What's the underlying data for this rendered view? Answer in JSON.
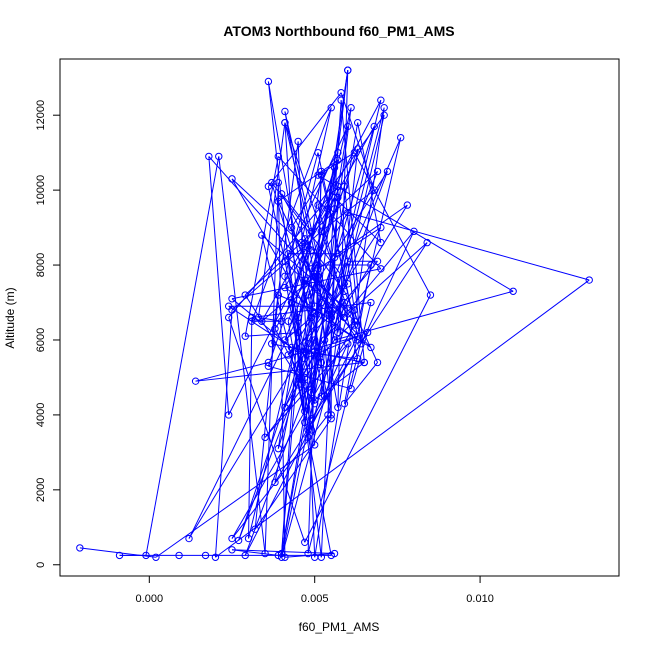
{
  "chart_data": {
    "type": "line",
    "title": "ATOM3 Northbound f60_PM1_AMS",
    "xlabel": "f60_PM1_AMS",
    "ylabel": "Altitude (m)",
    "xlim": [
      -0.0027,
      0.0142
    ],
    "ylim": [
      -300,
      13500
    ],
    "x_ticks": [
      0.0,
      0.005,
      0.01
    ],
    "x_tick_labels": [
      "0.000",
      "0.005",
      "0.010"
    ],
    "y_ticks": [
      0,
      2000,
      4000,
      6000,
      8000,
      10000,
      12000
    ],
    "y_tick_labels": [
      "0",
      "2000",
      "4000",
      "6000",
      "8000",
      "10000",
      "12000"
    ],
    "grid": false,
    "colors": {
      "series": "#0000ff",
      "axis": "#000000"
    },
    "series": [
      {
        "marker": "open-circle",
        "points": [
          [
            -0.0021,
            450
          ],
          [
            0.0002,
            200
          ],
          [
            0.005,
            3200
          ],
          [
            0.0048,
            5900
          ],
          [
            0.0012,
            700
          ],
          [
            0.0051,
            7700
          ],
          [
            0.006,
            13200
          ],
          [
            0.005,
            6000
          ],
          [
            0.0027,
            650
          ],
          [
            0.0056,
            8200
          ],
          [
            0.004,
            300
          ],
          [
            0.005,
            5700
          ],
          [
            0.0036,
            12900
          ],
          [
            0.0047,
            4100
          ],
          [
            0.0034,
            8800
          ],
          [
            0.006,
            6800
          ],
          [
            0.0041,
            11800
          ],
          [
            0.0033,
            6600
          ],
          [
            0.004,
            6500
          ],
          [
            0.0031,
            6500
          ],
          [
            0.0055,
            12200
          ],
          [
            0.0046,
            8600
          ],
          [
            0.0052,
            5400
          ],
          [
            0.0053,
            4500
          ],
          [
            0.005,
            5600
          ],
          [
            0.0041,
            4200
          ],
          [
            0.0076,
            11400
          ],
          [
            0.0063,
            6400
          ],
          [
            0.0018,
            10900
          ],
          [
            0.0024,
            4000
          ],
          [
            0.0049,
            8400
          ],
          [
            0.004,
            9900
          ],
          [
            0.0049,
            8900
          ],
          [
            0.007,
            12400
          ],
          [
            0.0047,
            3800
          ],
          [
            0.0041,
            11800
          ],
          [
            0.0056,
            6000
          ],
          [
            0.0062,
            6500
          ],
          [
            0.0071,
            12200
          ],
          [
            0.0053,
            6000
          ],
          [
            0.0078,
            9600
          ],
          [
            0.0057,
            8300
          ],
          [
            0.0042,
            8300
          ],
          [
            0.0047,
            4800
          ],
          [
            0.0035,
            3400
          ],
          [
            0.006,
            5900
          ],
          [
            0.0048,
            3600
          ],
          [
            0.0045,
            6200
          ],
          [
            0.0029,
            6100
          ],
          [
            0.0039,
            10900
          ],
          [
            0.007,
            7900
          ],
          [
            0.0025,
            7100
          ],
          [
            0.0043,
            5800
          ],
          [
            0.0024,
            6900
          ],
          [
            0.005,
            6900
          ],
          [
            0.0047,
            8700
          ],
          [
            0.0059,
            7300
          ],
          [
            0.0069,
            5400
          ],
          [
            0.0059,
            4300
          ],
          [
            0.0067,
            8000
          ],
          [
            0.0051,
            8000
          ],
          [
            0.0038,
            2200
          ],
          [
            0.0066,
            6200
          ],
          [
            0.0061,
            4700
          ],
          [
            0.0036,
            5300
          ],
          [
            0.0057,
            10800
          ],
          [
            0.0039,
            9700
          ],
          [
            0.0054,
            6800
          ],
          [
            0.007,
            9000
          ],
          [
            0.0051,
            7900
          ],
          [
            0.0055,
            4000
          ],
          [
            0.0055,
            6700
          ],
          [
            0.004,
            200
          ],
          [
            0.006,
            6700
          ],
          [
            0.0084,
            8600
          ],
          [
            0.0049,
            3900
          ],
          [
            0.0047,
            5000
          ],
          [
            0.0056,
            6000
          ],
          [
            0.011,
            7300
          ],
          [
            0.0051,
            10400
          ],
          [
            0.0062,
            11000
          ],
          [
            0.0085,
            7200
          ],
          [
            0.0047,
            600
          ],
          [
            0.0024,
            6600
          ],
          [
            0.0057,
            10100
          ],
          [
            0.0034,
            6500
          ],
          [
            0.005,
            7700
          ],
          [
            0.0063,
            6000
          ],
          [
            0.0041,
            7400
          ],
          [
            0.0054,
            9500
          ],
          [
            0.0068,
            11700
          ],
          [
            0.0039,
            3100
          ],
          [
            0.0052,
            10400
          ],
          [
            0.0063,
            6100
          ],
          [
            0.0029,
            250
          ],
          [
            0.0072,
            10500
          ],
          [
            0.0048,
            7200
          ],
          [
            0.0055,
            3900
          ],
          [
            0.0032,
            950
          ],
          [
            0.0039,
            7200
          ],
          [
            0.0055,
            6600
          ],
          [
            0.0041,
            12100
          ],
          [
            0.0057,
            4200
          ],
          [
            0.006,
            13200
          ],
          [
            0.0047,
            5500
          ],
          [
            0.0063,
            6100
          ],
          [
            0.0036,
            5400
          ],
          [
            0.0014,
            4900
          ],
          [
            0.0065,
            5400
          ],
          [
            0.005,
            4400
          ],
          [
            0.0043,
            7000
          ],
          [
            0.0052,
            200
          ],
          [
            0.0057,
            9800
          ],
          [
            0.0055,
            6600
          ],
          [
            0.0069,
            8100
          ],
          [
            0.006,
            8100
          ],
          [
            0.0052,
            4500
          ],
          [
            0.0058,
            12400
          ],
          [
            0.0065,
            5400
          ],
          [
            0.0037,
            5900
          ],
          [
            0.0045,
            11300
          ],
          [
            0.005,
            200
          ],
          [
            0.0062,
            6800
          ],
          [
            0.0056,
            10600
          ],
          [
            0.0043,
            7000
          ],
          [
            0.0047,
            8500
          ],
          [
            0.0025,
            10300
          ],
          [
            0.0049,
            6600
          ],
          [
            0.0041,
            6000
          ],
          [
            0.0059,
            10100
          ],
          [
            0.0064,
            5900
          ],
          [
            0.008,
            8900
          ],
          [
            0.0051,
            5800
          ],
          [
            0.0046,
            5000
          ],
          [
            0.0038,
            6300
          ],
          [
            0.0047,
            7500
          ],
          [
            0.006,
            9400
          ],
          [
            0.0133,
            7600
          ],
          [
            0.002,
            200
          ],
          [
            0.0025,
            6800
          ],
          [
            0.0052,
            8900
          ],
          [
            0.0068,
            10000
          ],
          [
            0.0058,
            12600
          ],
          [
            0.0036,
            10100
          ],
          [
            0.0047,
            5700
          ],
          [
            0.0069,
            10500
          ],
          [
            0.0029,
            7200
          ],
          [
            0.005,
            4300
          ],
          [
            0.0052,
            10500
          ],
          [
            0.0048,
            300
          ],
          [
            0.0067,
            7000
          ],
          [
            0.0031,
            6600
          ],
          [
            0.003,
            700
          ],
          [
            0.0061,
            12200
          ],
          [
            0.0048,
            3400
          ],
          [
            0.0042,
            6500
          ],
          [
            0.0056,
            9800
          ],
          [
            0.007,
            8600
          ],
          [
            0.0063,
            11800
          ],
          [
            0.0049,
            4600
          ],
          [
            0.0049,
            6600
          ],
          [
            0.0037,
            10200
          ],
          [
            0.006,
            7500
          ],
          [
            0.0044,
            5700
          ],
          [
            0.0063,
            5500
          ],
          [
            0.0051,
            9600
          ],
          [
            0.0071,
            12000
          ],
          [
            0.0049,
            3600
          ],
          [
            0.0041,
            7700
          ],
          [
            0.0051,
            11000
          ],
          [
            0.0062,
            6400
          ],
          [
            0.0025,
            700
          ],
          [
            0.0054,
            4000
          ],
          [
            0.0063,
            11100
          ],
          [
            0.0045,
            6600
          ],
          [
            0.004,
            300
          ],
          [
            0.0047,
            7600
          ],
          [
            0.0059,
            6600
          ],
          [
            0.0049,
            7900
          ],
          [
            0.0056,
            9500
          ],
          [
            0.006,
            11700
          ],
          [
            0.0041,
            8100
          ],
          [
            0.0067,
            5800
          ],
          [
            0.005,
            6700
          ],
          [
            0.0052,
            7000
          ],
          [
            0.0042,
            5600
          ],
          [
            0.0059,
            7000
          ],
          [
            0.0057,
            6200
          ],
          [
            0.0043,
            9000
          ],
          [
            0.0057,
            11000
          ],
          [
            0.0045,
            4800
          ],
          [
            0.0055,
            250
          ],
          [
            0.0017,
            250
          ],
          [
            0.0009,
            250
          ],
          [
            -0.0009,
            250
          ],
          [
            -0.0001,
            250
          ],
          [
            0.0021,
            10900
          ],
          [
            0.0035,
            300
          ],
          [
            0.0039,
            10200
          ],
          [
            0.0041,
            200
          ],
          [
            0.0056,
            300
          ],
          [
            0.0025,
            400
          ],
          [
            0.0039,
            250
          ]
        ]
      }
    ]
  }
}
